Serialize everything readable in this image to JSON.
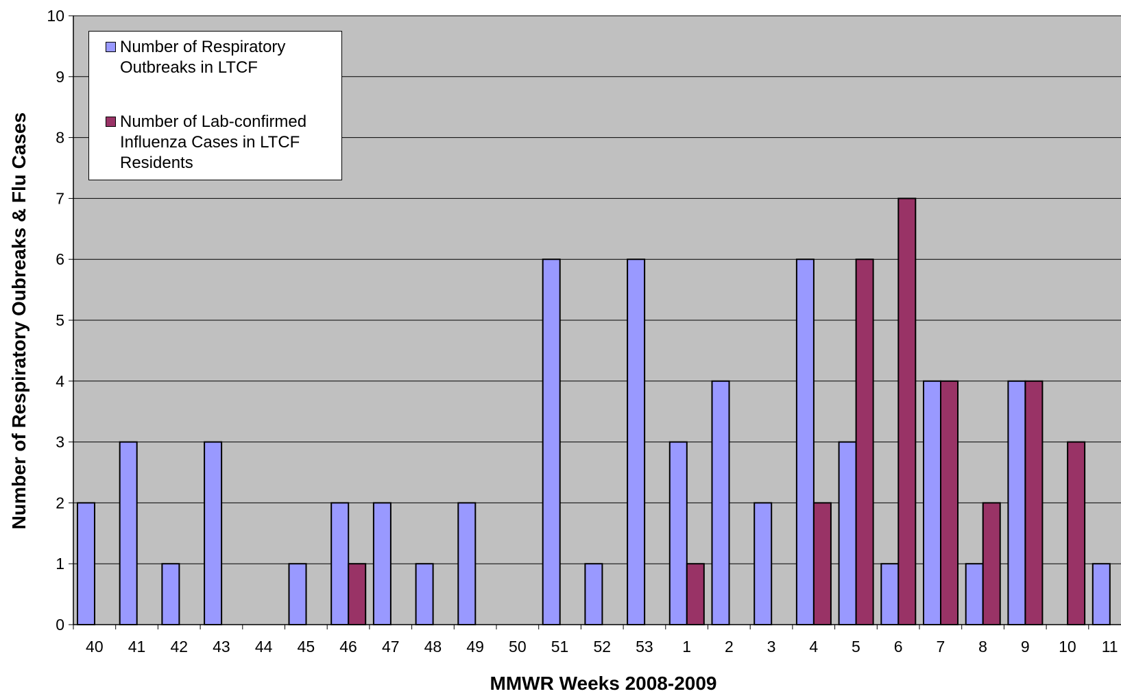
{
  "chart_data": {
    "type": "bar",
    "title": "",
    "xlabel": "MMWR Weeks 2008-2009",
    "ylabel": "Number of Respiratory Oubreaks & Flu Cases",
    "ylim": [
      0,
      10
    ],
    "yticks": [
      "0",
      "1",
      "2",
      "3",
      "4",
      "5",
      "6",
      "7",
      "8",
      "9",
      "10"
    ],
    "grid": true,
    "legend_position": "top-left",
    "categories": [
      "40",
      "41",
      "42",
      "43",
      "44",
      "45",
      "46",
      "47",
      "48",
      "49",
      "50",
      "51",
      "52",
      "53",
      "1",
      "2",
      "3",
      "4",
      "5",
      "6",
      "7",
      "8",
      "9",
      "10",
      "11"
    ],
    "series": [
      {
        "name": "Number of Respiratory Outbreaks in LTCF",
        "color": "#9999ff",
        "values": [
          2,
          3,
          1,
          3,
          0,
          1,
          2,
          2,
          1,
          2,
          0,
          6,
          1,
          6,
          3,
          4,
          2,
          6,
          3,
          1,
          4,
          1,
          4,
          0,
          1
        ]
      },
      {
        "name": "Number of Lab-confirmed Influenza Cases in LTCF Residents",
        "color": "#993366",
        "values": [
          0,
          0,
          0,
          0,
          0,
          0,
          1,
          0,
          0,
          0,
          0,
          0,
          0,
          0,
          1,
          0,
          0,
          2,
          6,
          7,
          4,
          2,
          4,
          3,
          0
        ]
      }
    ],
    "plot_background": "#c0c0c0"
  },
  "legend": {
    "items": [
      {
        "label": "Number of Respiratory\nOutbreaks in LTCF",
        "color": "#9999ff"
      },
      {
        "label": "Number of Lab-confirmed\nInfluenza Cases in LTCF\nResidents",
        "color": "#993366"
      }
    ]
  }
}
